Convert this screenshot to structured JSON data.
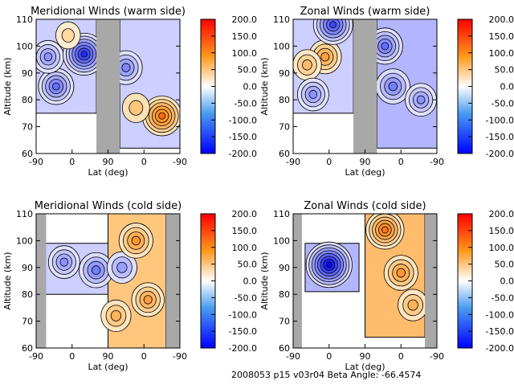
{
  "footer": "2008053 p15 v03r04 Beta Angle: -66.4574",
  "chart_data": [
    {
      "type": "heatmap",
      "title": "Meridional Winds (warm side)",
      "xlabel": "Lat (deg)",
      "ylabel": "Altitude (km)",
      "xticks": [
        "-90",
        "0",
        "90",
        "0",
        "-90"
      ],
      "yticks": [
        "60",
        "70",
        "80",
        "90",
        "100",
        "110"
      ],
      "ylim": [
        60,
        110
      ],
      "colorbar": {
        "range": [
          -200,
          200
        ],
        "ticks": [
          "200.0",
          "150.0",
          "100.0",
          "50.0",
          "0.0",
          "-50.0",
          "-100.0",
          "-150.0",
          "-200.0"
        ]
      },
      "base_regions": [
        {
          "from": {
            "leg": 1,
            "lat": -90
          },
          "to": {
            "leg": 1,
            "lat": 61
          },
          "alt": [
            75,
            110
          ],
          "value": -40
        },
        {
          "from": {
            "leg": 2,
            "lat": 60
          },
          "to": {
            "leg": 2,
            "lat": -90
          },
          "alt": [
            62,
            110
          ],
          "value": -40
        }
      ],
      "data_gaps": [
        {
          "from": {
            "leg": 1,
            "lat": 61
          },
          "to": {
            "leg": 2,
            "lat": 60
          }
        }
      ],
      "features": [
        {
          "leg": 1,
          "lat": -40,
          "alt": 85,
          "value": -120
        },
        {
          "leg": 1,
          "lat": -60,
          "alt": 96,
          "value": -90
        },
        {
          "leg": 1,
          "lat": 30,
          "alt": 97,
          "value": -170
        },
        {
          "leg": 1,
          "lat": -10,
          "alt": 104,
          "value": 40
        },
        {
          "leg": 2,
          "lat": -45,
          "alt": 74,
          "value": 150
        },
        {
          "leg": 2,
          "lat": 20,
          "alt": 77,
          "value": 60
        },
        {
          "leg": 2,
          "lat": 45,
          "alt": 92,
          "value": -100
        }
      ]
    },
    {
      "type": "heatmap",
      "title": "Zonal Winds (warm side)",
      "xlabel": "Lat (deg)",
      "ylabel": "Altitude (km)",
      "xticks": [
        "-90",
        "0",
        "90",
        "0",
        "-90"
      ],
      "yticks": [
        "60",
        "70",
        "80",
        "90",
        "100",
        "110"
      ],
      "ylim": [
        60,
        110
      ],
      "colorbar": {
        "range": [
          -200,
          200
        ],
        "ticks": [
          "200.0",
          "150.0",
          "100.0",
          "50.0",
          "0.0",
          "-50.0",
          "-100.0",
          "-150.0",
          "-200.0"
        ]
      },
      "base_regions": [
        {
          "from": {
            "leg": 1,
            "lat": -90
          },
          "to": {
            "leg": 1,
            "lat": 61
          },
          "alt": [
            75,
            110
          ],
          "value": -40
        },
        {
          "from": {
            "leg": 2,
            "lat": 60
          },
          "to": {
            "leg": 2,
            "lat": -90
          },
          "alt": [
            62,
            110
          ],
          "value": -60
        }
      ],
      "data_gaps": [
        {
          "from": {
            "leg": 1,
            "lat": 61
          },
          "to": {
            "leg": 2,
            "lat": 60
          }
        }
      ],
      "features": [
        {
          "leg": 1,
          "lat": -10,
          "alt": 96,
          "value": 100
        },
        {
          "leg": 1,
          "lat": -55,
          "alt": 93,
          "value": 70
        },
        {
          "leg": 1,
          "lat": 10,
          "alt": 108,
          "value": -150
        },
        {
          "leg": 1,
          "lat": -40,
          "alt": 82,
          "value": -90
        },
        {
          "leg": 2,
          "lat": 20,
          "alt": 85,
          "value": -110
        },
        {
          "leg": 2,
          "lat": -50,
          "alt": 80,
          "value": -90
        },
        {
          "leg": 2,
          "lat": 40,
          "alt": 100,
          "value": -120
        }
      ]
    },
    {
      "type": "heatmap",
      "title": "Meridional Winds (cold side)",
      "xlabel": "Lat (deg)",
      "ylabel": "Altitude (km)",
      "xticks": [
        "-90",
        "0",
        "90",
        "0",
        "-90"
      ],
      "yticks": [
        "60",
        "70",
        "80",
        "90",
        "100",
        "110"
      ],
      "ylim": [
        60,
        110
      ],
      "colorbar": {
        "range": [
          -200,
          200
        ],
        "ticks": [
          "200.0",
          "150.0",
          "100.0",
          "50.0",
          "0.0",
          "-50.0",
          "-100.0",
          "-150.0",
          "-200.0"
        ]
      },
      "base_regions": [
        {
          "from": {
            "leg": 1,
            "lat": -70
          },
          "to": {
            "leg": 1,
            "lat": 90
          },
          "alt": [
            80,
            99
          ],
          "value": -40
        },
        {
          "from": {
            "leg": 2,
            "lat": 90
          },
          "to": {
            "leg": 2,
            "lat": -55
          },
          "alt": [
            60,
            110
          ],
          "value": 60
        }
      ],
      "data_gaps": [
        {
          "from": {
            "leg": 1,
            "lat": -90
          },
          "to": {
            "leg": 1,
            "lat": -65
          }
        },
        {
          "from": {
            "leg": 2,
            "lat": -55
          },
          "to": {
            "leg": 2,
            "lat": -90
          }
        }
      ],
      "features": [
        {
          "leg": 1,
          "lat": -20,
          "alt": 92,
          "value": -90
        },
        {
          "leg": 1,
          "lat": 60,
          "alt": 89,
          "value": -110
        },
        {
          "leg": 2,
          "lat": 55,
          "alt": 90,
          "value": -80
        },
        {
          "leg": 2,
          "lat": 20,
          "alt": 100,
          "value": 110
        },
        {
          "leg": 2,
          "lat": -10,
          "alt": 78,
          "value": 100
        },
        {
          "leg": 2,
          "lat": 70,
          "alt": 72,
          "value": 80
        }
      ]
    },
    {
      "type": "heatmap",
      "title": "Zonal Winds (cold side)",
      "xlabel": "Lat (deg)",
      "ylabel": "Altitude (km)",
      "xticks": [
        "-90",
        "0",
        "90",
        "0",
        "-90"
      ],
      "yticks": [
        "60",
        "70",
        "80",
        "90",
        "100",
        "110"
      ],
      "ylim": [
        60,
        110
      ],
      "colorbar": {
        "range": [
          -200,
          200
        ],
        "ticks": [
          "200.0",
          "150.0",
          "100.0",
          "50.0",
          "0.0",
          "-50.0",
          "-100.0",
          "-150.0",
          "-200.0"
        ]
      },
      "base_regions": [
        {
          "from": {
            "leg": 1,
            "lat": -60
          },
          "to": {
            "leg": 1,
            "lat": 75
          },
          "alt": [
            81,
            99
          ],
          "value": -60
        },
        {
          "from": {
            "leg": 2,
            "lat": 90
          },
          "to": {
            "leg": 2,
            "lat": -60
          },
          "alt": [
            64,
            110
          ],
          "value": 70
        }
      ],
      "data_gaps": [
        {
          "from": {
            "leg": 1,
            "lat": -90
          },
          "to": {
            "leg": 1,
            "lat": -68
          }
        },
        {
          "from": {
            "leg": 2,
            "lat": -60
          },
          "to": {
            "leg": 2,
            "lat": -90
          }
        }
      ],
      "features": [
        {
          "leg": 1,
          "lat": 0,
          "alt": 91,
          "value": -200
        },
        {
          "leg": 2,
          "lat": 40,
          "alt": 104,
          "value": 140
        },
        {
          "leg": 2,
          "lat": 0,
          "alt": 88,
          "value": 110
        },
        {
          "leg": 2,
          "lat": -30,
          "alt": 76,
          "value": 80
        }
      ]
    }
  ]
}
